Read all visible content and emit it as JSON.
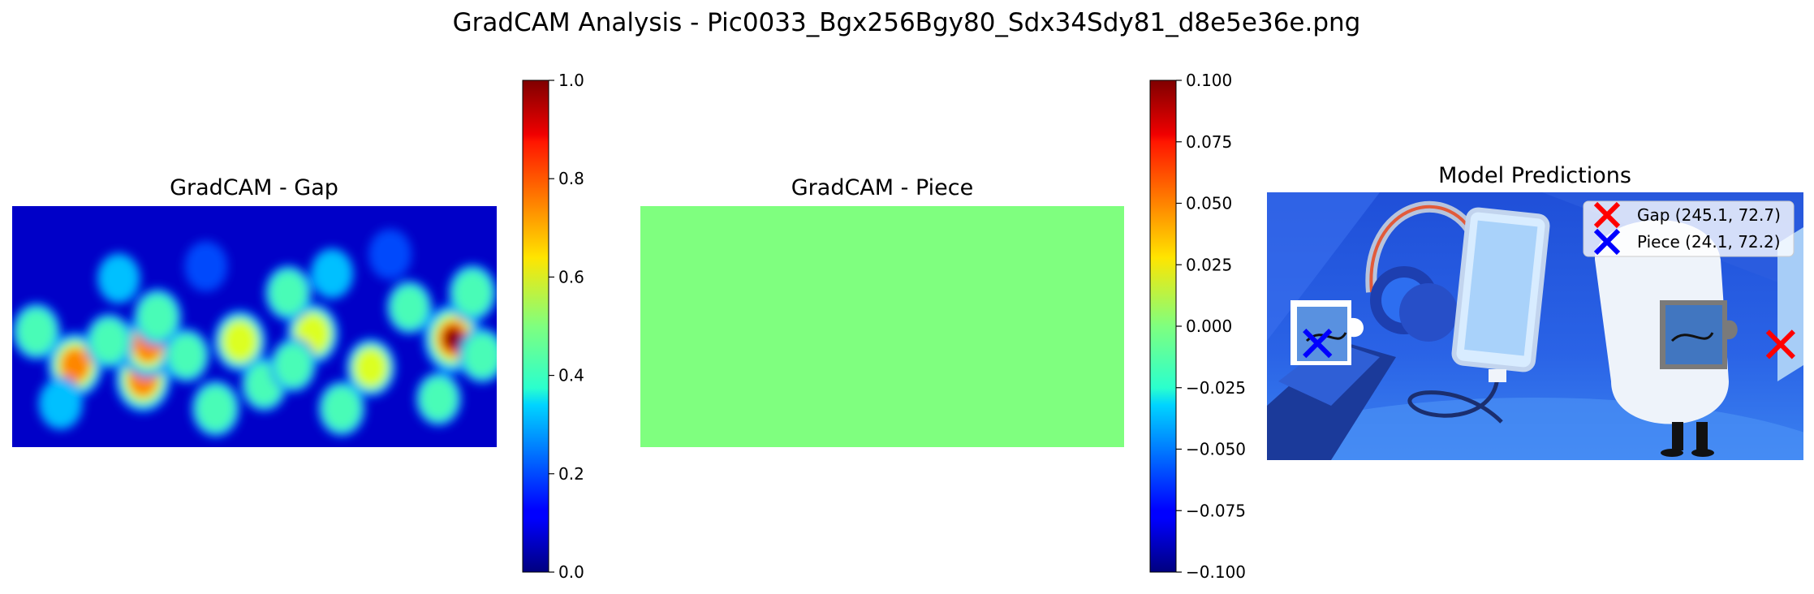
{
  "figure": {
    "suptitle": "GradCAM Analysis - Pic0033_Bgx256Bgy80_Sdx34Sdy81_d8e5e36e.png"
  },
  "chart_data": [
    {
      "type": "heatmap",
      "title": "GradCAM - Gap",
      "colormap": "jet",
      "vmin": 0.0,
      "vmax": 1.0,
      "colorbar_ticks": [
        "0.0",
        "0.2",
        "0.4",
        "0.6",
        "0.8",
        "1.0"
      ],
      "hotspots": [
        {
          "x": 0.91,
          "y": 0.55,
          "v": 1.0
        },
        {
          "x": 0.13,
          "y": 0.66,
          "v": 0.85
        },
        {
          "x": 0.27,
          "y": 0.72,
          "v": 0.85
        },
        {
          "x": 0.28,
          "y": 0.58,
          "v": 0.75
        },
        {
          "x": 0.47,
          "y": 0.56,
          "v": 0.72
        },
        {
          "x": 0.62,
          "y": 0.53,
          "v": 0.7
        },
        {
          "x": 0.74,
          "y": 0.67,
          "v": 0.6
        },
        {
          "x": 0.3,
          "y": 0.46,
          "v": 0.55
        },
        {
          "x": 0.57,
          "y": 0.36,
          "v": 0.5
        },
        {
          "x": 0.95,
          "y": 0.36,
          "v": 0.55
        },
        {
          "x": 0.42,
          "y": 0.84,
          "v": 0.55
        },
        {
          "x": 0.68,
          "y": 0.84,
          "v": 0.5
        },
        {
          "x": 0.05,
          "y": 0.52,
          "v": 0.55
        },
        {
          "x": 0.2,
          "y": 0.56,
          "v": 0.5
        },
        {
          "x": 0.82,
          "y": 0.42,
          "v": 0.45
        },
        {
          "x": 0.36,
          "y": 0.62,
          "v": 0.45
        },
        {
          "x": 0.52,
          "y": 0.74,
          "v": 0.45
        },
        {
          "x": 0.1,
          "y": 0.82,
          "v": 0.4
        },
        {
          "x": 0.88,
          "y": 0.8,
          "v": 0.45
        },
        {
          "x": 0.22,
          "y": 0.3,
          "v": 0.35
        },
        {
          "x": 0.66,
          "y": 0.28,
          "v": 0.35
        },
        {
          "x": 0.78,
          "y": 0.2,
          "v": 0.3
        },
        {
          "x": 0.4,
          "y": 0.25,
          "v": 0.3
        },
        {
          "x": 0.97,
          "y": 0.62,
          "v": 0.5
        },
        {
          "x": 0.58,
          "y": 0.66,
          "v": 0.45
        }
      ]
    },
    {
      "type": "heatmap",
      "title": "GradCAM - Piece",
      "colormap": "jet",
      "vmin": -0.1,
      "vmax": 0.1,
      "value": 0.0,
      "uniform_color": "#7fff7f",
      "colorbar_ticks": [
        "−0.100",
        "−0.075",
        "−0.050",
        "−0.025",
        "0.000",
        "0.025",
        "0.050",
        "0.075",
        "0.100"
      ]
    },
    {
      "type": "scatter",
      "title": "Model Predictions",
      "image_size": [
        256,
        128
      ],
      "series": [
        {
          "name": "Gap (245.1, 72.7)",
          "x": 245.1,
          "y": 72.7,
          "marker": "x",
          "color": "#ff0000"
        },
        {
          "name": "Piece (24.1, 72.2)",
          "x": 24.1,
          "y": 72.2,
          "marker": "x",
          "color": "#0000ff"
        }
      ],
      "legend_position": "upper right"
    }
  ]
}
